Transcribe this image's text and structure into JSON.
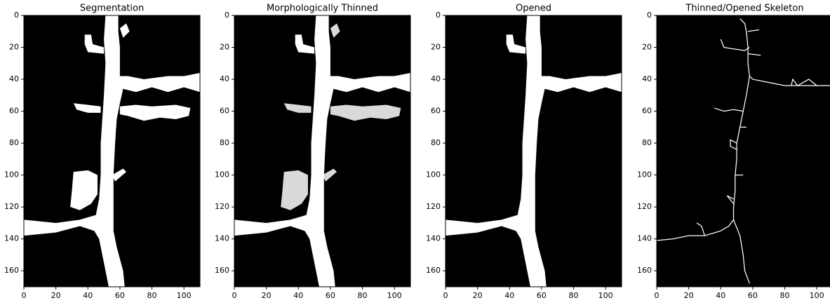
{
  "chart_data": [
    {
      "type": "image",
      "title": "Segmentation",
      "xlim": [
        0,
        110
      ],
      "ylim": [
        170,
        0
      ],
      "xticks": [
        0,
        20,
        40,
        60,
        80,
        100
      ],
      "yticks": [
        0,
        20,
        40,
        60,
        80,
        100,
        120,
        140,
        160
      ]
    },
    {
      "type": "image",
      "title": "Morphologically Thinned",
      "xlim": [
        0,
        110
      ],
      "ylim": [
        170,
        0
      ],
      "xticks": [
        0,
        20,
        40,
        60,
        80,
        100
      ],
      "yticks": [
        0,
        20,
        40,
        60,
        80,
        100,
        120,
        140,
        160
      ]
    },
    {
      "type": "image",
      "title": "Opened",
      "xlim": [
        0,
        110
      ],
      "ylim": [
        170,
        0
      ],
      "xticks": [
        0,
        20,
        40,
        60,
        80,
        100
      ],
      "yticks": [
        0,
        20,
        40,
        60,
        80,
        100,
        120,
        140,
        160
      ]
    },
    {
      "type": "image",
      "title": "Thinned/Opened Skeleton",
      "xlim": [
        0,
        110
      ],
      "ylim": [
        170,
        0
      ],
      "xticks": [
        0,
        20,
        40,
        60,
        80,
        100
      ],
      "yticks": [
        0,
        20,
        40,
        60,
        80,
        100,
        120,
        140,
        160
      ]
    }
  ]
}
